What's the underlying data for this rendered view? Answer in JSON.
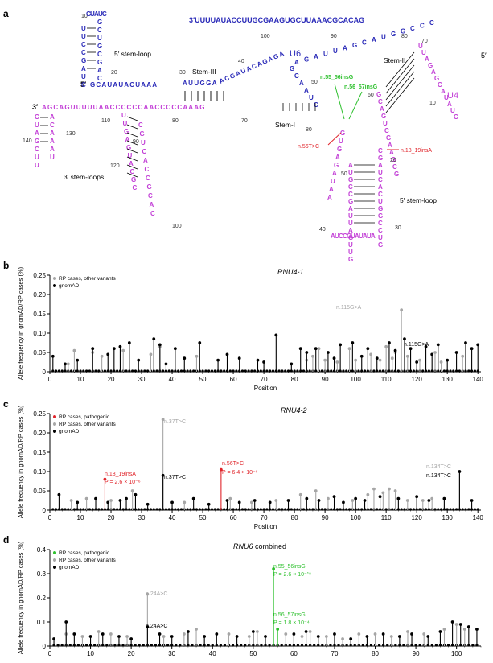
{
  "panel_a": {
    "letter": "a",
    "u6_top_strand": "3′UUUUAUACCUUGCGAAGUGCUUAAACGCACAG",
    "u6_label": "U6",
    "u4_label": "U4",
    "u6_5prime_label": "5′",
    "u4_3prime_label": "3′",
    "u4_5prime_label": "5′",
    "u6_5prime_end": "A",
    "u6_stem_start": "GCAUAUACUAAA",
    "u6_stem3_seq": "AUUGGA",
    "u6_mid_seq": "ACGAUACAGAGA",
    "u6_right_seq": "AGAUUAGCAUGGCCC",
    "u4_bottom_strand": "AGCAGUUUUUAACCCCCCAACCCCCAAAG",
    "u4_center_nts": "GCAAUCGUGAGAUAA",
    "u4_right_nts": "GCAGUCGAAGCG",
    "u4_top_hairpin": "UUAGAGCAUAUC",
    "u4_loop_nts": "AUGCCGAUUAGUUGCGAUCACUGGCCUGAUCCGUAUAUA",
    "u6_5sl_nts": "UUCCGAUCGCUGCGACGUAUCGCUUCA",
    "u4_3sl_nts": "UUGAGUACGCCGUCACCGCAC",
    "u4_3sl2_nts": "CUAGCUUACAAAU",
    "labels": {
      "sl5_u6": "5′ stem-loop",
      "stem3": "Stem-III",
      "stem2": "Stem-II",
      "stem1": "Stem-I",
      "sl3_u4": "3′ stem-loops",
      "sl5_u4": "5′ stem-loop"
    },
    "positions": [
      "10",
      "20",
      "30",
      "40",
      "50",
      "60",
      "70",
      "80",
      "90",
      "100",
      "110",
      "120",
      "130",
      "140",
      "80",
      "70",
      "90",
      "100",
      "10",
      "20",
      "30",
      "40",
      "50",
      "60",
      "70"
    ],
    "variants": {
      "u6_a": "n.55_56insG",
      "u6_b": "n.56_57insG",
      "u4_a": "n.56T>C",
      "u4_b": "n.18_19insA"
    }
  },
  "panel_b": {
    "letter": "b",
    "gene": "RNU4-1",
    "legend": [
      "RP cases, other variants",
      "gnomAD"
    ],
    "ylabel": "Allele frequency in gnomAD/RP cases (%)",
    "xlabel": "Position",
    "yticks": [
      "0",
      "0.05",
      "0.10",
      "0.15",
      "0.20",
      "0.25"
    ],
    "xticks": [
      "0",
      "10",
      "20",
      "30",
      "40",
      "50",
      "60",
      "70",
      "80",
      "90",
      "100",
      "110",
      "120",
      "130",
      "140"
    ],
    "annotations": [
      {
        "text": "n.115G>A",
        "kind": "rp"
      },
      {
        "text": "n.115G>A",
        "kind": "gnomad"
      }
    ]
  },
  "panel_c": {
    "letter": "c",
    "gene": "RNU4-2",
    "legend": [
      "RP cases, pathogenic",
      "RP cases, other variants",
      "gnomAD"
    ],
    "ylabel": "Allele frequency in gnomAD/RP cases (%)",
    "xlabel": "Position",
    "yticks": [
      "0",
      "0.05",
      "0.10",
      "0.15",
      "0.20",
      "0.25"
    ],
    "xticks": [
      "0",
      "10",
      "20",
      "30",
      "40",
      "50",
      "60",
      "70",
      "80",
      "90",
      "100",
      "110",
      "120",
      "130",
      "140"
    ],
    "annotations": [
      {
        "text": "n.37T>C",
        "kind": "rp"
      },
      {
        "text": "n.37T>C",
        "kind": "gnomad"
      },
      {
        "text": "n.18_19insA",
        "kind": "path"
      },
      {
        "text": "P = 2.6 × 10⁻⁶",
        "kind": "path"
      },
      {
        "text": "n.56T>C",
        "kind": "path"
      },
      {
        "text": "P = 6.4 × 10⁻⁵",
        "kind": "path"
      },
      {
        "text": "n.134T>C",
        "kind": "rp"
      },
      {
        "text": "n.134T>C",
        "kind": "gnomad"
      }
    ]
  },
  "panel_d": {
    "letter": "d",
    "gene": "RNU6",
    "gene_suffix": " combined",
    "legend": [
      "RP cases, pathogenic",
      "RP cases, other variants",
      "gnomAD"
    ],
    "ylabel": "Allele frequency in gnomAD/RP cases (%)",
    "xlabel": "Position",
    "yticks": [
      "0",
      "0.1",
      "0.2",
      "0.3",
      "0.4"
    ],
    "xticks": [
      "0",
      "10",
      "20",
      "30",
      "40",
      "50",
      "60",
      "70",
      "80",
      "90",
      "100"
    ],
    "annotations": [
      {
        "text": "n.55_56insG",
        "kind": "path"
      },
      {
        "text": "P = 2.6 × 10⁻¹⁸",
        "kind": "path"
      },
      {
        "text": "n.56_57insG",
        "kind": "path"
      },
      {
        "text": "P = 1.8 × 10⁻⁴",
        "kind": "path"
      },
      {
        "text": "n.24A>C",
        "kind": "rp"
      },
      {
        "text": "n.24A>C",
        "kind": "gnomad"
      }
    ]
  },
  "colors": {
    "u6": "#2a2ab8",
    "u4": "#c23fd6",
    "path_red": "#e0252b",
    "path_green": "#2ec02e",
    "rp_grey": "#a6a6a6",
    "gnomad_black": "#000000"
  },
  "chart_data": [
    {
      "type": "lollipop",
      "title": "RNU4-1",
      "xlabel": "Position",
      "ylabel": "Allele frequency in gnomAD/RP cases (%)",
      "xlim": [
        0,
        141
      ],
      "ylim": [
        0,
        0.25
      ],
      "series": [
        {
          "name": "RP cases, other variants",
          "color": "#a6a6a6",
          "x": [
            6,
            8,
            14,
            17,
            24,
            33,
            36,
            48,
            84,
            86,
            88,
            90,
            94,
            98,
            100,
            105,
            108,
            110,
            112,
            113,
            115,
            117,
            121,
            126,
            128,
            135
          ],
          "y": [
            0.02,
            0.055,
            0.05,
            0.04,
            0.055,
            0.045,
            0.065,
            0.04,
            0.03,
            0.04,
            0.06,
            0.03,
            0.025,
            0.06,
            0.03,
            0.045,
            0.03,
            0.065,
            0.035,
            0.05,
            0.16,
            0.04,
            0.03,
            0.05,
            0.025,
            0.04
          ]
        },
        {
          "name": "gnomAD",
          "color": "#000000",
          "x": [
            1,
            5,
            9,
            14,
            19,
            21,
            23,
            26,
            29,
            34,
            36,
            38,
            41,
            44,
            49,
            55,
            58,
            62,
            68,
            70,
            74,
            79,
            82,
            84,
            87,
            91,
            93,
            95,
            99,
            102,
            104,
            107,
            111,
            113,
            116,
            118,
            120,
            123,
            125,
            127,
            130,
            133,
            136,
            138,
            140
          ],
          "y": [
            0.04,
            0.02,
            0.03,
            0.06,
            0.045,
            0.06,
            0.065,
            0.075,
            0.03,
            0.085,
            0.07,
            0.02,
            0.06,
            0.035,
            0.075,
            0.03,
            0.045,
            0.035,
            0.03,
            0.025,
            0.095,
            0.02,
            0.06,
            0.05,
            0.06,
            0.05,
            0.035,
            0.07,
            0.075,
            0.04,
            0.06,
            0.035,
            0.075,
            0.055,
            0.085,
            0.06,
            0.025,
            0.065,
            0.045,
            0.07,
            0.03,
            0.05,
            0.075,
            0.06,
            0.07
          ]
        }
      ]
    },
    {
      "type": "lollipop",
      "title": "RNU4-2",
      "xlabel": "Position",
      "ylabel": "Allele frequency in gnomAD/RP cases (%)",
      "xlim": [
        0,
        141
      ],
      "ylim": [
        0,
        0.25
      ],
      "series": [
        {
          "name": "RP cases, pathogenic",
          "color": "#e0252b",
          "x": [
            18,
            56
          ],
          "y": [
            0.08,
            0.105
          ]
        },
        {
          "name": "RP cases, other variants",
          "color": "#a6a6a6",
          "x": [
            7,
            12,
            20,
            27,
            37,
            44,
            59,
            66,
            74,
            82,
            87,
            91,
            99,
            104,
            106,
            109,
            111,
            113,
            117,
            122,
            125,
            134
          ],
          "y": [
            0.025,
            0.03,
            0.025,
            0.05,
            0.235,
            0.02,
            0.03,
            0.02,
            0.025,
            0.04,
            0.05,
            0.03,
            0.025,
            0.04,
            0.055,
            0.045,
            0.055,
            0.05,
            0.025,
            0.025,
            0.03,
            0.1
          ]
        },
        {
          "name": "gnomAD",
          "color": "#000000",
          "x": [
            3,
            9,
            15,
            19,
            23,
            25,
            28,
            32,
            37,
            40,
            47,
            52,
            58,
            62,
            67,
            72,
            78,
            84,
            88,
            93,
            96,
            100,
            103,
            108,
            114,
            120,
            124,
            129,
            134,
            138
          ],
          "y": [
            0.04,
            0.02,
            0.03,
            0.02,
            0.025,
            0.03,
            0.04,
            0.015,
            0.09,
            0.02,
            0.03,
            0.015,
            0.025,
            0.02,
            0.025,
            0.02,
            0.025,
            0.03,
            0.025,
            0.035,
            0.02,
            0.03,
            0.025,
            0.035,
            0.03,
            0.035,
            0.025,
            0.03,
            0.1,
            0.025
          ]
        }
      ]
    },
    {
      "type": "lollipop",
      "title": "RNU6 combined",
      "xlabel": "Position",
      "ylabel": "Allele frequency in gnomAD/RP cases (%)",
      "xlim": [
        0,
        106
      ],
      "ylim": [
        0,
        0.4
      ],
      "series": [
        {
          "name": "RP cases, pathogenic",
          "color": "#2ec02e",
          "x": [
            55,
            56
          ],
          "y": [
            0.32,
            0.07
          ]
        },
        {
          "name": "RP cases, other variants",
          "color": "#a6a6a6",
          "x": [
            4,
            8,
            12,
            15,
            19,
            24,
            28,
            33,
            36,
            44,
            49,
            51,
            58,
            62,
            64,
            68,
            72,
            76,
            80,
            84,
            88,
            92,
            97,
            100,
            102
          ],
          "y": [
            0.05,
            0.04,
            0.06,
            0.05,
            0.04,
            0.215,
            0.04,
            0.05,
            0.07,
            0.05,
            0.04,
            0.06,
            0.05,
            0.04,
            0.06,
            0.04,
            0.03,
            0.05,
            0.05,
            0.04,
            0.06,
            0.05,
            0.07,
            0.09,
            0.07
          ]
        },
        {
          "name": "gnomAD",
          "color": "#000000",
          "x": [
            1,
            4,
            6,
            10,
            13,
            17,
            20,
            24,
            27,
            30,
            34,
            38,
            41,
            46,
            50,
            53,
            60,
            63,
            66,
            70,
            74,
            78,
            82,
            86,
            89,
            93,
            96,
            99,
            101,
            103,
            105
          ],
          "y": [
            0.03,
            0.1,
            0.05,
            0.04,
            0.05,
            0.04,
            0.03,
            0.08,
            0.05,
            0.04,
            0.06,
            0.04,
            0.05,
            0.04,
            0.06,
            0.04,
            0.05,
            0.06,
            0.04,
            0.05,
            0.03,
            0.04,
            0.05,
            0.04,
            0.05,
            0.04,
            0.06,
            0.1,
            0.09,
            0.08,
            0.07
          ]
        }
      ]
    }
  ]
}
